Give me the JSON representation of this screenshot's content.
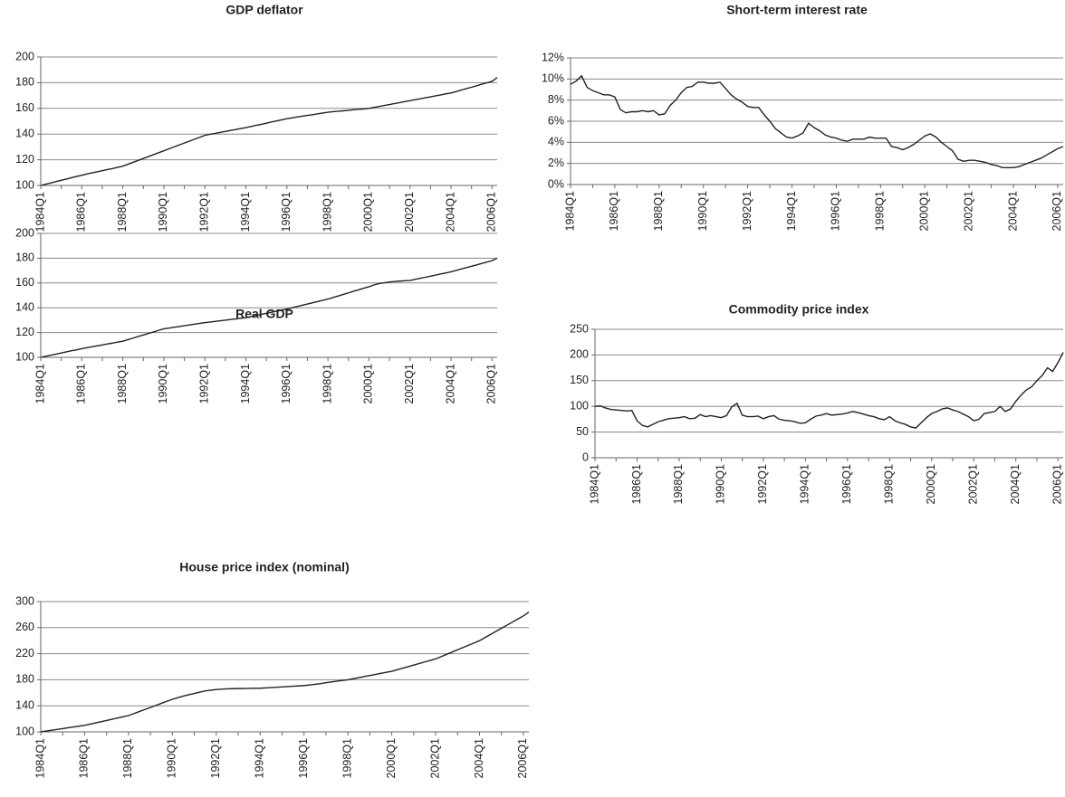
{
  "chart_data": [
    {
      "type": "line",
      "title": "GDP deflator",
      "categories": [
        "1984Q1",
        null,
        null,
        null,
        null,
        null,
        null,
        null,
        "1986Q1",
        null,
        null,
        null,
        null,
        null,
        null,
        null,
        "1988Q1",
        null,
        null,
        null,
        null,
        null,
        null,
        null,
        "1990Q1",
        null,
        null,
        null,
        null,
        null,
        null,
        null,
        "1992Q1",
        null,
        null,
        null,
        null,
        null,
        null,
        null,
        "1994Q1",
        null,
        null,
        null,
        null,
        null,
        null,
        null,
        "1996Q1",
        null,
        null,
        null,
        null,
        null,
        null,
        null,
        "1998Q1",
        null,
        null,
        null,
        null,
        null,
        null,
        null,
        "2000Q1",
        null,
        null,
        null,
        null,
        null,
        null,
        null,
        "2002Q1",
        null,
        null,
        null,
        null,
        null,
        null,
        null,
        "2004Q1",
        null,
        null,
        null,
        null,
        null,
        null,
        null,
        "2006Q1",
        null
      ],
      "values": [
        100,
        101,
        102,
        103,
        104,
        105,
        106,
        107,
        108,
        108.9,
        109.8,
        110.6,
        111.5,
        112.4,
        113.2,
        114.1,
        115,
        116.5,
        118,
        119.5,
        121,
        122.5,
        124,
        125.5,
        127,
        128.5,
        130,
        131.5,
        133,
        134.5,
        136,
        137.5,
        139,
        139.8,
        140.5,
        141.3,
        142,
        142.8,
        143.5,
        144.3,
        145,
        145.9,
        146.8,
        147.6,
        148.5,
        149.4,
        150.2,
        151.1,
        152,
        152.6,
        153.3,
        153.9,
        154.5,
        155.1,
        155.8,
        156.4,
        157,
        157.4,
        157.8,
        158.1,
        158.5,
        158.9,
        159.3,
        159.6,
        160,
        160.8,
        161.5,
        162.3,
        163,
        163.8,
        164.5,
        165.3,
        166,
        166.8,
        167.5,
        168.3,
        169,
        169.8,
        170.5,
        171.3,
        172,
        173.1,
        174.3,
        175.4,
        176.5,
        177.6,
        178.8,
        179.9,
        181,
        184
      ],
      "color": "#222222",
      "ylim": [
        100,
        200
      ],
      "yticks": [
        100,
        120,
        140,
        160,
        180,
        200
      ],
      "grid": true
    },
    {
      "type": "line",
      "title": "Short-term interest rate",
      "categories": [
        "1984Q1",
        null,
        null,
        null,
        null,
        null,
        null,
        null,
        "1986Q1",
        null,
        null,
        null,
        null,
        null,
        null,
        null,
        "1988Q1",
        null,
        null,
        null,
        null,
        null,
        null,
        null,
        "1990Q1",
        null,
        null,
        null,
        null,
        null,
        null,
        null,
        "1992Q1",
        null,
        null,
        null,
        null,
        null,
        null,
        null,
        "1994Q1",
        null,
        null,
        null,
        null,
        null,
        null,
        null,
        "1996Q1",
        null,
        null,
        null,
        null,
        null,
        null,
        null,
        "1998Q1",
        null,
        null,
        null,
        null,
        null,
        null,
        null,
        "2000Q1",
        null,
        null,
        null,
        null,
        null,
        null,
        null,
        "2002Q1",
        null,
        null,
        null,
        null,
        null,
        null,
        null,
        "2004Q1",
        null,
        null,
        null,
        null,
        null,
        null,
        null,
        "2006Q1",
        null
      ],
      "values": [
        9.5,
        9.8,
        10.3,
        9.2,
        8.9,
        8.7,
        8.5,
        8.5,
        8.3,
        7.1,
        6.8,
        6.9,
        6.9,
        7.0,
        6.9,
        7.0,
        6.6,
        6.7,
        7.5,
        8.0,
        8.7,
        9.2,
        9.3,
        9.7,
        9.7,
        9.6,
        9.6,
        9.7,
        9.1,
        8.5,
        8.1,
        7.8,
        7.4,
        7.3,
        7.3,
        6.6,
        6.0,
        5.3,
        4.9,
        4.5,
        4.4,
        4.6,
        4.9,
        5.8,
        5.4,
        5.1,
        4.7,
        4.5,
        4.4,
        4.2,
        4.1,
        4.3,
        4.3,
        4.3,
        4.5,
        4.4,
        4.4,
        4.4,
        3.6,
        3.5,
        3.3,
        3.5,
        3.8,
        4.2,
        4.6,
        4.8,
        4.5,
        4.0,
        3.6,
        3.2,
        2.4,
        2.2,
        2.3,
        2.3,
        2.2,
        2.1,
        1.9,
        1.8,
        1.6,
        1.6,
        1.6,
        1.7,
        1.9,
        2.1,
        2.3,
        2.5,
        2.8,
        3.1,
        3.4,
        3.6
      ],
      "color": "#222222",
      "ylim": [
        0,
        12
      ],
      "yticks": [
        {
          "value": 0,
          "label": "0%"
        },
        {
          "value": 2,
          "label": "2%"
        },
        {
          "value": 4,
          "label": "4%"
        },
        {
          "value": 6,
          "label": "6%"
        },
        {
          "value": 8,
          "label": "8%"
        },
        {
          "value": 10,
          "label": "10%"
        },
        {
          "value": 12,
          "label": "12%"
        }
      ],
      "grid": true
    },
    {
      "type": "line",
      "title": "Real GDP",
      "categories": [
        "1984Q1",
        null,
        null,
        null,
        null,
        null,
        null,
        null,
        "1986Q1",
        null,
        null,
        null,
        null,
        null,
        null,
        null,
        "1988Q1",
        null,
        null,
        null,
        null,
        null,
        null,
        null,
        "1990Q1",
        null,
        null,
        null,
        null,
        null,
        null,
        null,
        "1992Q1",
        null,
        null,
        null,
        null,
        null,
        null,
        null,
        "1994Q1",
        null,
        null,
        null,
        null,
        null,
        null,
        null,
        "1996Q1",
        null,
        null,
        null,
        null,
        null,
        null,
        null,
        "1998Q1",
        null,
        null,
        null,
        null,
        null,
        null,
        null,
        "2000Q1",
        null,
        null,
        null,
        null,
        null,
        null,
        null,
        "2002Q1",
        null,
        null,
        null,
        null,
        null,
        null,
        null,
        "2004Q1",
        null,
        null,
        null,
        null,
        null,
        null,
        null,
        "2006Q1",
        null
      ],
      "values": [
        100,
        100.9,
        101.8,
        102.6,
        103.5,
        104.4,
        105.3,
        106.1,
        107,
        107.8,
        108.5,
        109.3,
        110,
        110.8,
        111.5,
        112.3,
        113,
        114.3,
        115.5,
        116.8,
        118,
        119.3,
        120.5,
        121.8,
        123,
        123.6,
        124.3,
        124.9,
        125.5,
        126.1,
        126.8,
        127.4,
        128,
        128.5,
        129,
        129.5,
        130,
        130.5,
        131,
        131.5,
        132,
        132.9,
        133.8,
        134.6,
        135.5,
        136.4,
        137.3,
        138.1,
        139,
        140,
        141,
        142,
        143,
        144,
        145,
        146,
        147,
        148.3,
        149.5,
        150.8,
        152,
        153.3,
        154.5,
        155.8,
        157,
        158.5,
        159.5,
        160.2,
        160.8,
        161.2,
        161.5,
        161.8,
        162,
        162.9,
        163.8,
        164.6,
        165.5,
        166.4,
        167.3,
        168.1,
        169,
        170.1,
        171.3,
        172.4,
        173.5,
        174.6,
        175.8,
        176.9,
        178,
        180
      ],
      "color": "#222222",
      "ylim": [
        100,
        200
      ],
      "yticks": [
        100,
        120,
        140,
        160,
        180,
        200
      ],
      "grid": true
    },
    {
      "type": "line",
      "title": "Commodity price index",
      "categories": [
        "1984Q1",
        null,
        null,
        null,
        null,
        null,
        null,
        null,
        "1986Q1",
        null,
        null,
        null,
        null,
        null,
        null,
        null,
        "1988Q1",
        null,
        null,
        null,
        null,
        null,
        null,
        null,
        "1990Q1",
        null,
        null,
        null,
        null,
        null,
        null,
        null,
        "1992Q1",
        null,
        null,
        null,
        null,
        null,
        null,
        null,
        "1994Q1",
        null,
        null,
        null,
        null,
        null,
        null,
        null,
        "1996Q1",
        null,
        null,
        null,
        null,
        null,
        null,
        null,
        "1998Q1",
        null,
        null,
        null,
        null,
        null,
        null,
        null,
        "2000Q1",
        null,
        null,
        null,
        null,
        null,
        null,
        null,
        "2002Q1",
        null,
        null,
        null,
        null,
        null,
        null,
        null,
        "2004Q1",
        null,
        null,
        null,
        null,
        null,
        null,
        null,
        "2006Q1",
        null
      ],
      "values": [
        100,
        101,
        97,
        94,
        93,
        92,
        91,
        92,
        72,
        63,
        60,
        65,
        70,
        73,
        76,
        77,
        78,
        80,
        76,
        77,
        84,
        80,
        82,
        80,
        78,
        82,
        99,
        106,
        83,
        80,
        80,
        81,
        76,
        80,
        82,
        75,
        73,
        72,
        70,
        67,
        68,
        75,
        81,
        83,
        86,
        83,
        84,
        85,
        87,
        90,
        88,
        85,
        82,
        80,
        76,
        74,
        80,
        72,
        68,
        65,
        60,
        58,
        68,
        78,
        86,
        90,
        95,
        97,
        93,
        90,
        85,
        80,
        72,
        75,
        86,
        88,
        90,
        100,
        90,
        95,
        110,
        122,
        132,
        138,
        150,
        160,
        175,
        168,
        185,
        205
      ],
      "color": "#222222",
      "ylim": [
        0,
        250
      ],
      "yticks": [
        0,
        50,
        100,
        150,
        200,
        250
      ],
      "grid": true
    },
    {
      "type": "line",
      "title": "House price index (nominal)",
      "categories": [
        "1984Q1",
        null,
        null,
        null,
        null,
        null,
        null,
        null,
        "1986Q1",
        null,
        null,
        null,
        null,
        null,
        null,
        null,
        "1988Q1",
        null,
        null,
        null,
        null,
        null,
        null,
        null,
        "1990Q1",
        null,
        null,
        null,
        null,
        null,
        null,
        null,
        "1992Q1",
        null,
        null,
        null,
        null,
        null,
        null,
        null,
        "1994Q1",
        null,
        null,
        null,
        null,
        null,
        null,
        null,
        "1996Q1",
        null,
        null,
        null,
        null,
        null,
        null,
        null,
        "1998Q1",
        null,
        null,
        null,
        null,
        null,
        null,
        null,
        "2000Q1",
        null,
        null,
        null,
        null,
        null,
        null,
        null,
        "2002Q1",
        null,
        null,
        null,
        null,
        null,
        null,
        null,
        "2004Q1",
        null,
        null,
        null,
        null,
        null,
        null,
        null,
        "2006Q1",
        null
      ],
      "values": [
        100,
        101.3,
        102.5,
        103.8,
        105,
        106.3,
        107.5,
        108.8,
        110,
        111.9,
        113.8,
        115.6,
        117.5,
        119.4,
        121.3,
        123.1,
        125,
        128.1,
        131.3,
        134.4,
        137.5,
        140.6,
        143.8,
        146.9,
        150,
        152.5,
        155,
        157,
        159,
        161,
        163,
        164,
        165,
        165.5,
        166,
        166.3,
        166.5,
        166.6,
        166.8,
        166.9,
        167,
        167.5,
        168,
        168.5,
        169,
        169.5,
        170,
        170.5,
        171,
        172,
        173,
        174,
        175.5,
        176.6,
        177.8,
        178.9,
        180,
        181.6,
        183.3,
        184.9,
        186.5,
        188.1,
        189.8,
        191.4,
        193,
        195.4,
        197.8,
        200.1,
        202.5,
        204.9,
        207.3,
        209.6,
        212,
        215.5,
        219,
        222.5,
        226,
        229.5,
        233,
        236.5,
        240,
        244.8,
        249.5,
        254.3,
        259,
        263.8,
        268.5,
        273.3,
        278,
        284
      ],
      "color": "#222222",
      "ylim": [
        100,
        300
      ],
      "yticks": [
        100,
        140,
        180,
        220,
        260,
        300
      ],
      "grid": true
    }
  ]
}
